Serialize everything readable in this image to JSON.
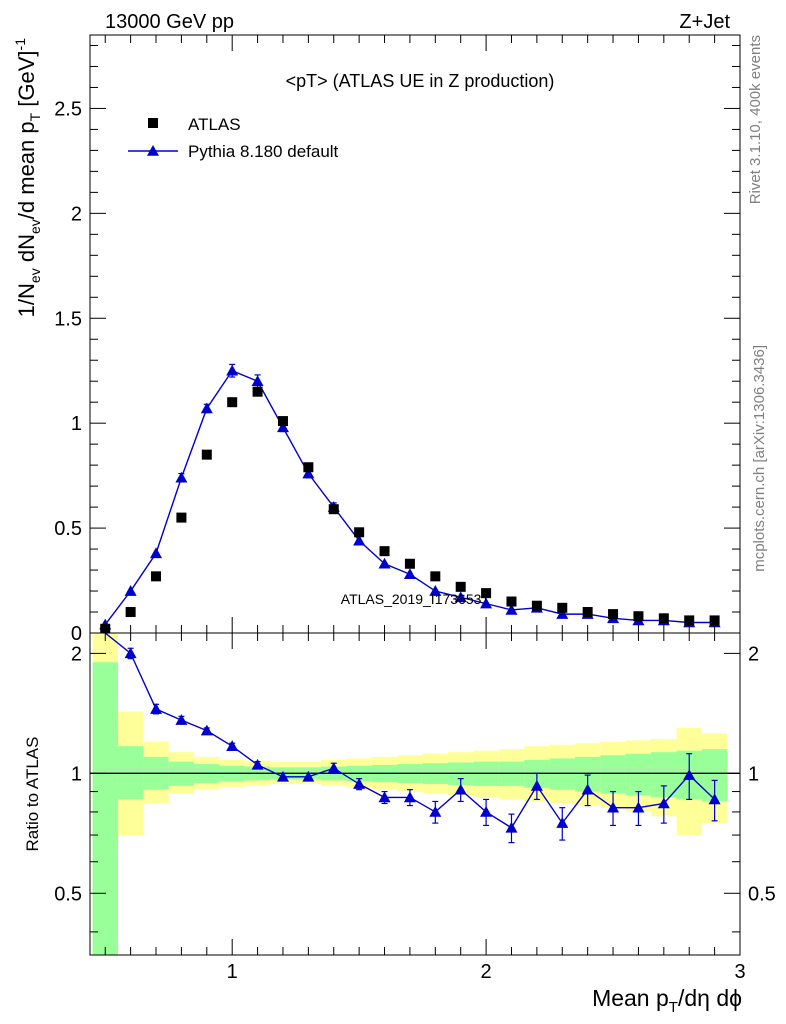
{
  "header": {
    "left": "13000 GeV pp",
    "right": "Z+Jet"
  },
  "side": {
    "rivet": "Rivet 3.1.10,  400k events",
    "mcplots": "mcplots.cern.ch [arXiv:1306.3436]"
  },
  "chart_data": [
    {
      "type": "scatter",
      "panel": "main",
      "title": "<pT> (ATLAS UE in Z production)",
      "ylabel": "1/N_ev dN_ev/d mean p_T [GeV]^-1",
      "watermark": "ATLAS_2019_I1736531",
      "xlim": [
        0.44,
        3.0
      ],
      "ylim": [
        0,
        2.85
      ],
      "yticks": [
        0,
        0.5,
        1,
        1.5,
        2,
        2.5
      ],
      "ytick_labels": [
        "0",
        "0.5",
        "1",
        "1.5",
        "2",
        "2.5"
      ],
      "legend_position": "top-left",
      "x": [
        0.5,
        0.6,
        0.7,
        0.8,
        0.9,
        1.0,
        1.1,
        1.2,
        1.3,
        1.4,
        1.5,
        1.6,
        1.7,
        1.8,
        1.9,
        2.0,
        2.1,
        2.2,
        2.3,
        2.4,
        2.5,
        2.6,
        2.7,
        2.8,
        2.9
      ],
      "series": [
        {
          "name": "ATLAS",
          "style": "square-markers",
          "color": "#000000",
          "values": [
            0.02,
            0.1,
            0.27,
            0.55,
            0.85,
            1.1,
            1.15,
            1.01,
            0.79,
            0.59,
            0.48,
            0.39,
            0.33,
            0.27,
            0.22,
            0.19,
            0.15,
            0.13,
            0.12,
            0.1,
            0.09,
            0.08,
            0.07,
            0.06,
            0.06
          ]
        },
        {
          "name": "Pythia 8.180 default",
          "style": "line-triangles",
          "color": "#0000cc",
          "values": [
            0.04,
            0.2,
            0.38,
            0.74,
            1.07,
            1.25,
            1.2,
            0.98,
            0.76,
            0.6,
            0.44,
            0.33,
            0.28,
            0.2,
            0.17,
            0.14,
            0.11,
            0.12,
            0.09,
            0.09,
            0.07,
            0.06,
            0.06,
            0.05,
            0.05
          ],
          "errors": [
            0.01,
            0.01,
            0.01,
            0.02,
            0.02,
            0.03,
            0.03,
            0.02,
            0.02,
            0.02,
            0.01,
            0.01,
            0.01,
            0.01,
            0.01,
            0.01,
            0.01,
            0.01,
            0.01,
            0.01,
            0.01,
            0.01,
            0.01,
            0.01,
            0.01
          ]
        }
      ]
    },
    {
      "type": "line",
      "panel": "ratio",
      "ylabel": "Ratio to ATLAS",
      "xlabel": "Mean p_T/dη dϕ",
      "xlim": [
        0.44,
        3.0
      ],
      "ylim": [
        0.35,
        2.25
      ],
      "log_y": true,
      "xticks": [
        1,
        2,
        3
      ],
      "xtick_labels": [
        "1",
        "2",
        "3"
      ],
      "yticks": [
        0.5,
        1,
        2
      ],
      "ytick_labels": [
        "0.5",
        "1",
        "2"
      ],
      "reference_line": 1,
      "x": [
        0.5,
        0.6,
        0.7,
        0.8,
        0.9,
        1.0,
        1.1,
        1.2,
        1.3,
        1.4,
        1.5,
        1.6,
        1.7,
        1.8,
        1.9,
        2.0,
        2.1,
        2.2,
        2.3,
        2.4,
        2.5,
        2.6,
        2.7,
        2.8,
        2.9
      ],
      "bin_edges": [
        0.45,
        0.55,
        0.65,
        0.75,
        0.85,
        0.95,
        1.05,
        1.15,
        1.25,
        1.35,
        1.45,
        1.55,
        1.65,
        1.75,
        1.85,
        1.95,
        2.05,
        2.15,
        2.25,
        2.35,
        2.45,
        2.55,
        2.65,
        2.75,
        2.85,
        2.95
      ],
      "bands": {
        "stat_green": {
          "color": "#99ff99",
          "lower": [
            0.35,
            0.86,
            0.91,
            0.93,
            0.945,
            0.955,
            0.96,
            0.965,
            0.965,
            0.96,
            0.955,
            0.95,
            0.945,
            0.94,
            0.935,
            0.93,
            0.93,
            0.92,
            0.91,
            0.9,
            0.89,
            0.88,
            0.87,
            0.86,
            0.85
          ],
          "upper": [
            1.9,
            1.17,
            1.1,
            1.07,
            1.055,
            1.045,
            1.04,
            1.035,
            1.035,
            1.04,
            1.045,
            1.05,
            1.055,
            1.06,
            1.065,
            1.07,
            1.07,
            1.08,
            1.09,
            1.1,
            1.11,
            1.12,
            1.13,
            1.14,
            1.15
          ]
        },
        "total_yellow": {
          "color": "#ffff99",
          "lower": [
            0.35,
            0.7,
            0.84,
            0.89,
            0.91,
            0.925,
            0.935,
            0.94,
            0.94,
            0.93,
            0.92,
            0.91,
            0.9,
            0.89,
            0.88,
            0.87,
            0.86,
            0.85,
            0.84,
            0.83,
            0.82,
            0.8,
            0.78,
            0.7,
            0.75
          ],
          "upper": [
            2.25,
            1.43,
            1.2,
            1.13,
            1.1,
            1.08,
            1.075,
            1.07,
            1.07,
            1.08,
            1.09,
            1.1,
            1.11,
            1.12,
            1.13,
            1.14,
            1.15,
            1.17,
            1.18,
            1.19,
            1.2,
            1.21,
            1.22,
            1.3,
            1.26
          ]
        }
      },
      "series": [
        {
          "name": "Pythia 8.180 default",
          "color": "#0000cc",
          "values": [
            2.6,
            2.0,
            1.45,
            1.36,
            1.28,
            1.17,
            1.05,
            0.98,
            0.98,
            1.03,
            0.94,
            0.87,
            0.87,
            0.8,
            0.91,
            0.8,
            0.73,
            0.93,
            0.75,
            0.91,
            0.82,
            0.82,
            0.84,
            0.99,
            0.86
          ],
          "errors": [
            0.1,
            0.06,
            0.04,
            0.03,
            0.02,
            0.02,
            0.02,
            0.02,
            0.02,
            0.03,
            0.03,
            0.03,
            0.04,
            0.05,
            0.06,
            0.06,
            0.06,
            0.07,
            0.07,
            0.08,
            0.08,
            0.08,
            0.09,
            0.13,
            0.1
          ]
        }
      ]
    }
  ]
}
